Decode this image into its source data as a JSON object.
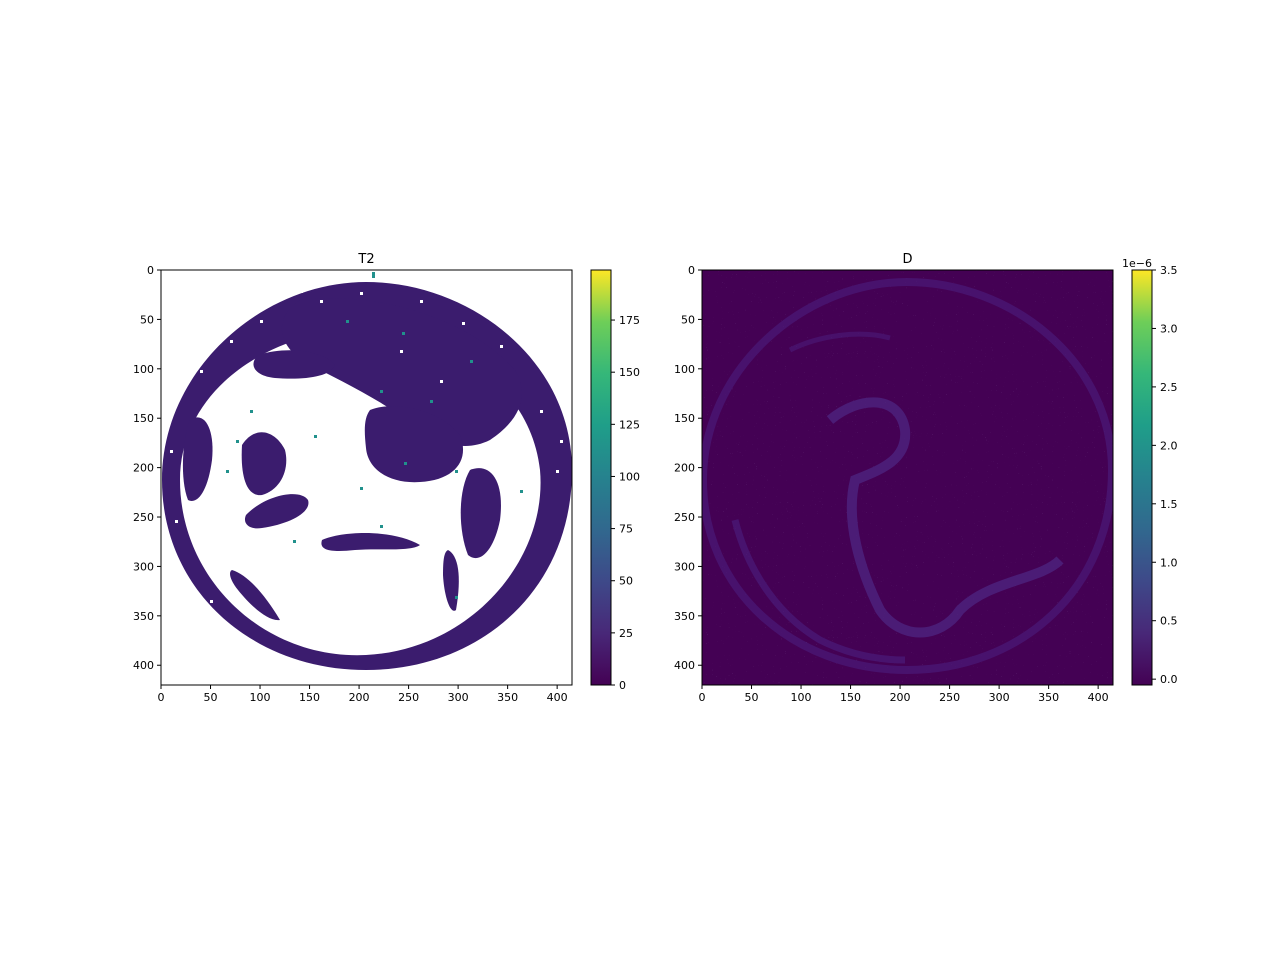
{
  "chart_data": [
    {
      "type": "heatmap",
      "title": "T2",
      "colormap": "viridis",
      "x_ticks": [
        "0",
        "50",
        "100",
        "150",
        "200",
        "250",
        "300",
        "350",
        "400"
      ],
      "y_ticks": [
        "0",
        "50",
        "100",
        "150",
        "200",
        "250",
        "300",
        "350",
        "400"
      ],
      "xlim": [
        0,
        415
      ],
      "ylim": [
        420,
        0
      ],
      "colorbar": {
        "range": [
          0,
          199
        ],
        "ticks": [
          "0",
          "25",
          "50",
          "75",
          "100",
          "125",
          "150",
          "175"
        ],
        "offset_label": ""
      },
      "image_description_values": {
        "background_value": "masked (white)",
        "tissue_value_typical": 15
      }
    },
    {
      "type": "heatmap",
      "title": "D",
      "colormap": "viridis",
      "x_ticks": [
        "0",
        "50",
        "100",
        "150",
        "200",
        "250",
        "300",
        "350",
        "400"
      ],
      "y_ticks": [
        "0",
        "50",
        "100",
        "150",
        "200",
        "250",
        "300",
        "350",
        "400"
      ],
      "xlim": [
        0,
        415
      ],
      "ylim": [
        420,
        0
      ],
      "colorbar": {
        "range": [
          -0.05,
          3.5
        ],
        "ticks": [
          "0.0",
          "0.5",
          "1.0",
          "1.5",
          "2.0",
          "2.5",
          "3.0",
          "3.5"
        ],
        "offset_label": "1e−6"
      },
      "image_description_values": {
        "background_value": 0,
        "tissue_value_typical": 0.1
      }
    }
  ],
  "colors": {
    "viridis_low": "#440154",
    "viridis_mid": "#21918c",
    "viridis_high": "#fde725",
    "tissue_t2": "#3b1c6e",
    "masked": "#ffffff"
  }
}
